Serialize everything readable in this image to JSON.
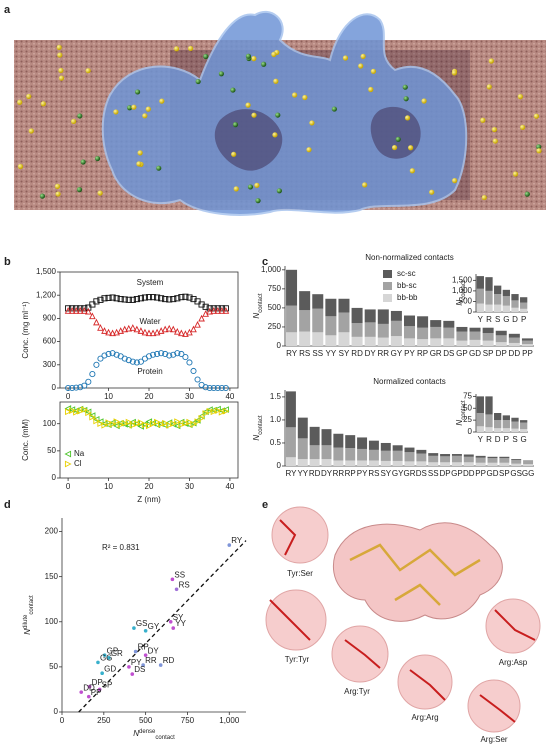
{
  "panels": [
    "a",
    "b",
    "c",
    "d",
    "e"
  ],
  "panel_e": {
    "labels": [
      "Tyr:Ser",
      "Tyr:Tyr",
      "Arg:Tyr",
      "Arg:Arg",
      "Arg:Ser",
      "Arg:Asp"
    ]
  },
  "chart_data": [
    {
      "type": "scatter",
      "frame": true,
      "y_label": "Conc. (mg ml⁻¹)",
      "xlim": [
        -2,
        42
      ],
      "xticks": [
        0,
        10,
        20,
        30,
        40
      ],
      "ylim": [
        0,
        1500
      ],
      "yticks": [
        0,
        300,
        600,
        900,
        {
          "value": 1200,
          "label": "1,200"
        },
        {
          "value": 1500,
          "label": "1,500"
        }
      ],
      "x": [
        0,
        1,
        2,
        3,
        4,
        5,
        6,
        7,
        8,
        9,
        10,
        11,
        12,
        13,
        14,
        15,
        16,
        17,
        18,
        19,
        20,
        21,
        22,
        23,
        24,
        25,
        26,
        27,
        28,
        29,
        30,
        31,
        32,
        33,
        34,
        35,
        36,
        37,
        38,
        39
      ],
      "series": [
        {
          "name": "System",
          "color": "#111111",
          "marker": "square",
          "values": [
            1030,
            1030,
            1030,
            1030,
            1030,
            1040,
            1080,
            1120,
            1140,
            1160,
            1165,
            1170,
            1160,
            1150,
            1145,
            1140,
            1140,
            1150,
            1160,
            1170,
            1175,
            1175,
            1170,
            1160,
            1150,
            1145,
            1150,
            1160,
            1175,
            1180,
            1170,
            1150,
            1120,
            1080,
            1050,
            1030,
            1030,
            1030,
            1030,
            1030
          ]
        },
        {
          "name": "Water",
          "color": "#d62728",
          "marker": "triangle",
          "values": [
            1000,
            1000,
            1000,
            1000,
            1000,
            990,
            930,
            850,
            780,
            740,
            720,
            710,
            720,
            740,
            760,
            770,
            780,
            760,
            740,
            720,
            710,
            710,
            720,
            740,
            760,
            770,
            760,
            730,
            710,
            700,
            720,
            760,
            820,
            900,
            960,
            990,
            1000,
            1000,
            1000,
            1000
          ]
        },
        {
          "name": "Protein",
          "color": "#1f77b4",
          "marker": "circle",
          "values": [
            0,
            0,
            5,
            10,
            30,
            80,
            180,
            300,
            380,
            420,
            440,
            450,
            430,
            410,
            380,
            360,
            340,
            330,
            340,
            380,
            410,
            430,
            440,
            450,
            440,
            420,
            430,
            450,
            440,
            400,
            330,
            220,
            110,
            40,
            10,
            0,
            0,
            0,
            0,
            0
          ]
        }
      ]
    },
    {
      "type": "scatter",
      "frame": true,
      "legend": "lower-left",
      "y_label": "Conc. (mM)",
      "x_label": "Z (nm)",
      "xlim": [
        -2,
        42
      ],
      "xticks": [
        0,
        10,
        20,
        30,
        40
      ],
      "ylim": [
        0,
        140
      ],
      "yticks": [
        0,
        50,
        100
      ],
      "x": [
        0,
        1,
        2,
        3,
        4,
        5,
        6,
        7,
        8,
        9,
        10,
        11,
        12,
        13,
        14,
        15,
        16,
        17,
        18,
        19,
        20,
        21,
        22,
        23,
        24,
        25,
        26,
        27,
        28,
        29,
        30,
        31,
        32,
        33,
        34,
        35,
        36,
        37,
        38,
        39
      ],
      "series": [
        {
          "name": "Na",
          "color": "#4cc42a",
          "marker": "triangle-left",
          "values": [
            128,
            126,
            124,
            127,
            125,
            122,
            115,
            108,
            104,
            100,
            98,
            102,
            96,
            101,
            99,
            97,
            103,
            100,
            95,
            99,
            104,
            101,
            98,
            100,
            97,
            102,
            99,
            96,
            103,
            100,
            98,
            101,
            106,
            114,
            122,
            126,
            125,
            127,
            124,
            126
          ]
        },
        {
          "name": "Cl",
          "color": "#e8d000",
          "marker": "triangle-right",
          "values": [
            122,
            124,
            121,
            123,
            126,
            120,
            112,
            105,
            100,
            97,
            102,
            99,
            104,
            98,
            101,
            103,
            97,
            100,
            102,
            98,
            96,
            100,
            103,
            99,
            101,
            97,
            100,
            104,
            98,
            101,
            103,
            99,
            104,
            110,
            119,
            123,
            122,
            124,
            121,
            123
          ]
        }
      ]
    },
    {
      "type": "bar",
      "stacked": true,
      "legend": "upper-center",
      "title": "Non-normalized contacts",
      "y_label": "N",
      "y_label_sub": "contact",
      "ylim": [
        0,
        1050
      ],
      "yticks": [
        0,
        250,
        500,
        750,
        {
          "value": 1000,
          "label": "1,000"
        }
      ],
      "categories": [
        "RY",
        "RS",
        "SS",
        "YY",
        "SY",
        "RD",
        "DY",
        "RR",
        "GY",
        "PY",
        "RP",
        "GR",
        "DS",
        "GP",
        "GD",
        "SP",
        "DP",
        "DD",
        "PP"
      ],
      "series": [
        {
          "name": "sc-sc",
          "color": "#5b5b5b",
          "values": [
            470,
            250,
            190,
            230,
            180,
            200,
            170,
            190,
            130,
            140,
            150,
            90,
            90,
            60,
            50,
            70,
            60,
            50,
            30
          ]
        },
        {
          "name": "bb-sc",
          "color": "#a3a3a3",
          "values": [
            350,
            280,
            310,
            250,
            260,
            180,
            190,
            180,
            200,
            160,
            150,
            150,
            140,
            120,
            110,
            100,
            90,
            70,
            45
          ]
        },
        {
          "name": "bb-bb",
          "color": "#d6d6d6",
          "values": [
            180,
            190,
            180,
            140,
            180,
            120,
            120,
            110,
            130,
            100,
            90,
            100,
            100,
            70,
            80,
            70,
            50,
            40,
            25
          ]
        }
      ]
    },
    {
      "type": "bar",
      "stacked": true,
      "y_label": "N",
      "y_label_sub": "contact",
      "ylim": [
        0,
        1800
      ],
      "yticks": [
        0,
        500,
        {
          "value": 1000,
          "label": "1,000"
        },
        {
          "value": 1500,
          "label": "1,500"
        }
      ],
      "categories": [
        "Y",
        "R",
        "S",
        "G",
        "D",
        "P"
      ],
      "series": [
        {
          "color": "#5b5b5b",
          "values": [
            600,
            650,
            400,
            300,
            300,
            250
          ]
        },
        {
          "color": "#a3a3a3",
          "values": [
            700,
            650,
            500,
            450,
            350,
            300
          ]
        },
        {
          "color": "#d6d6d6",
          "values": [
            400,
            350,
            350,
            300,
            200,
            150
          ]
        }
      ]
    },
    {
      "type": "bar",
      "stacked": true,
      "title": "Normalized contacts",
      "y_label": "N",
      "y_label_sub": "contact",
      "ylim": [
        0,
        1.65
      ],
      "yticks": [
        0,
        0.5,
        {
          "value": 1,
          "label": "1.0"
        },
        1.5
      ],
      "categories": [
        "RY",
        "YY",
        "RD",
        "DY",
        "RR",
        "RP",
        "PY",
        "RS",
        "SY",
        "GY",
        "GR",
        "DS",
        "SS",
        "DP",
        "GP",
        "DD",
        "PP",
        "GD",
        "SP",
        "GS",
        "GG"
      ],
      "series": [
        {
          "color": "#5b5b5b",
          "values": [
            0.78,
            0.45,
            0.4,
            0.35,
            0.3,
            0.28,
            0.25,
            0.2,
            0.17,
            0.12,
            0.1,
            0.08,
            0.06,
            0.05,
            0.04,
            0.05,
            0.04,
            0.03,
            0.03,
            0.02,
            0.01
          ]
        },
        {
          "color": "#a3a3a3",
          "values": [
            0.65,
            0.45,
            0.3,
            0.3,
            0.28,
            0.27,
            0.25,
            0.23,
            0.22,
            0.22,
            0.2,
            0.17,
            0.14,
            0.13,
            0.14,
            0.12,
            0.11,
            0.1,
            0.1,
            0.08,
            0.07
          ]
        },
        {
          "color": "#d6d6d6",
          "values": [
            0.19,
            0.15,
            0.15,
            0.15,
            0.12,
            0.12,
            0.12,
            0.12,
            0.11,
            0.11,
            0.1,
            0.1,
            0.08,
            0.08,
            0.08,
            0.08,
            0.07,
            0.07,
            0.07,
            0.05,
            0.04
          ]
        }
      ]
    },
    {
      "type": "bar",
      "stacked": true,
      "y_label": "N",
      "y_label_sub": "contact",
      "ylim": [
        0,
        80
      ],
      "yticks": [
        0,
        25,
        50,
        75
      ],
      "categories": [
        "Y",
        "R",
        "D",
        "P",
        "S",
        "G"
      ],
      "series": [
        {
          "color": "#5b5b5b",
          "values": [
            35,
            38,
            15,
            10,
            8,
            5
          ]
        },
        {
          "color": "#a3a3a3",
          "values": [
            28,
            27,
            17,
            17,
            15,
            14
          ]
        },
        {
          "color": "#d6d6d6",
          "values": [
            12,
            10,
            8,
            8,
            7,
            6
          ]
        }
      ]
    },
    {
      "type": "labeled-scatter",
      "annotation": "R² = 0.831",
      "x_label": "N",
      "x_label_sup": "dense",
      "x_label_sub": "contact",
      "y_label": "N",
      "y_label_sup": "dilute",
      "y_label_sub": "contact",
      "xlim": [
        0,
        1100
      ],
      "xticks": [
        0,
        250,
        500,
        750,
        {
          "value": 1000,
          "label": "1,000"
        }
      ],
      "ylim": [
        0,
        215
      ],
      "yticks": [
        0,
        50,
        100,
        150,
        200
      ],
      "labels": [
        "RY",
        "SS",
        "RS",
        "SY",
        "YY",
        "GS",
        "GY",
        "RP",
        "DY",
        "RD",
        "RR",
        "PY",
        "DS",
        "GP",
        "GR",
        "GG",
        "GD",
        "DP",
        "SP",
        "DD",
        "PP"
      ],
      "x": [
        1000,
        660,
        685,
        650,
        665,
        430,
        500,
        440,
        500,
        590,
        485,
        400,
        420,
        255,
        280,
        215,
        240,
        165,
        225,
        115,
        160
      ],
      "values": [
        185,
        147,
        136,
        100,
        93,
        93,
        90,
        67,
        63,
        52,
        52,
        50,
        42,
        63,
        60,
        55,
        43,
        28,
        25,
        22,
        17
      ],
      "point_colors": [
        "#7f95d8",
        "#c050d0",
        "#a070d8",
        "#c050d0",
        "#c050d0",
        "#38b0cc",
        "#38b0cc",
        "#7f95d8",
        "#c050d0",
        "#7f95d8",
        "#7f95d8",
        "#c050d0",
        "#c050d0",
        "#38b0cc",
        "#38b0cc",
        "#38b0cc",
        "#38b0cc",
        "#c050d0",
        "#c050d0",
        "#c050d0",
        "#c050d0"
      ],
      "trend_line": {
        "x": [
          100,
          1100
        ],
        "values": [
          0,
          190
        ]
      }
    }
  ]
}
